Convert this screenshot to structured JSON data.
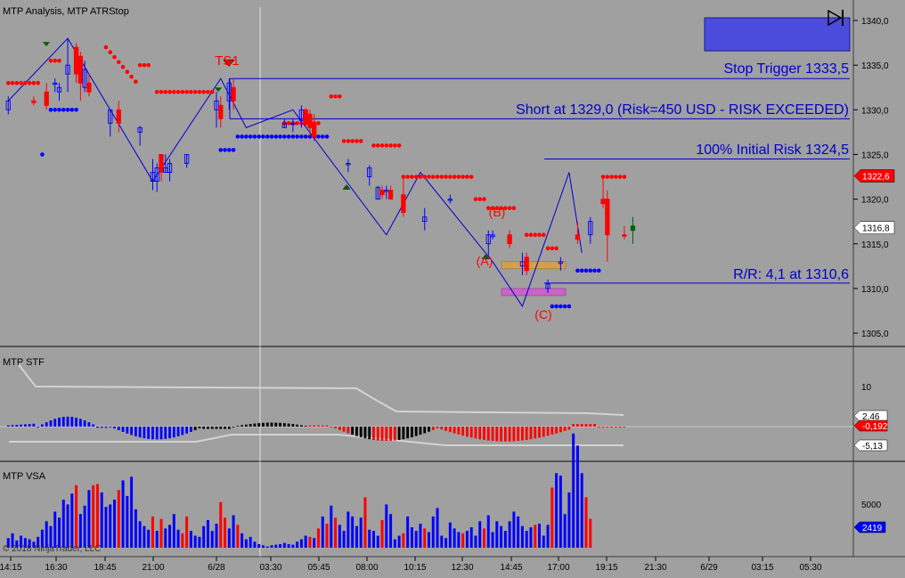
{
  "panels": {
    "price_title": "MTP Analysis, MTP ATRStop",
    "stf_title": "MTP STF",
    "vsa_title": "MTP VSA",
    "copyright": "© 2018 NinjaTrader, LLC"
  },
  "annotations": {
    "stop_trigger": "Stop Trigger 1333,5",
    "short_entry": "Short at 1329,0 (Risk=450 USD - RISK EXCEEDED)",
    "initial_risk": "100% Initial Risk 1324,5",
    "reward_risk": "R/R: 4,1 at 1310,6",
    "ts1": "TS1",
    "label_a": "(A)",
    "label_b": "(B)",
    "label_c": "(C)"
  },
  "colors": {
    "background": "#a0a0a0",
    "up": "#0000ff",
    "down": "#ff0000",
    "neutral": "#000000",
    "band": "#d3d3d3",
    "target_box": "#4b4bdc",
    "zone_orange": "#d2a050",
    "zone_magenta": "#c864c8"
  },
  "chart_data": [
    {
      "type": "candlestick",
      "title": "MTP Analysis, MTP ATRStop",
      "ylim": [
        1303,
        1341.5
      ],
      "y_ticks": [
        "1305,0",
        "1310,0",
        "1315,0",
        "1320,0",
        "1325,0",
        "1330,0",
        "1335,0",
        "1340,0"
      ],
      "x_ticks": [
        "14:15",
        "16:30",
        "18:45",
        "21:00",
        "6/28",
        "03:30",
        "05:45",
        "08:00",
        "10:15",
        "12:30",
        "14:45",
        "17:00",
        "19:15",
        "21:30",
        "6/29",
        "03:15",
        "05:30"
      ],
      "price_labels": [
        {
          "text": "1322,6",
          "value": 1322.6,
          "color": "#ff0000"
        },
        {
          "text": "1316,8",
          "value": 1316.8,
          "color": "#000000"
        }
      ],
      "levels": [
        {
          "name": "Stop Trigger",
          "value": 1333.5
        },
        {
          "name": "Short",
          "value": 1329.0
        },
        {
          "name": "100% Initial Risk",
          "value": 1324.5
        },
        {
          "name": "R/R",
          "value": 1310.6
        }
      ],
      "zigzag": [
        [
          1,
          1331
        ],
        [
          15,
          1338
        ],
        [
          35,
          1322
        ],
        [
          51,
          1333.5
        ],
        [
          57,
          1328
        ],
        [
          68,
          1330
        ],
        [
          90,
          1316
        ],
        [
          98,
          1323
        ],
        [
          115,
          1313
        ],
        [
          122,
          1308
        ],
        [
          133,
          1323
        ],
        [
          136,
          1314
        ]
      ]
    },
    {
      "type": "bar",
      "title": "MTP STF",
      "y_ticks": [
        "10"
      ],
      "value_labels": [
        "2,46",
        "-0,192",
        "-5,13"
      ]
    },
    {
      "type": "bar",
      "title": "MTP VSA",
      "y_ticks": [
        "5000"
      ],
      "value_labels": [
        "2419"
      ]
    }
  ]
}
